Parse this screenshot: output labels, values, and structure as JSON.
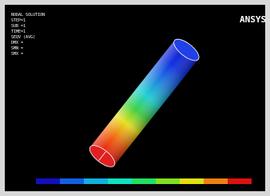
{
  "header": {
    "lines": [
      "NODAL SOLUTION",
      "STEP=1",
      "SUB =1",
      "TIME=1",
      "SEQV (AVG)",
      "DMX =",
      "SMN =",
      "SMX ="
    ]
  },
  "logo": "ANSYS"
}
